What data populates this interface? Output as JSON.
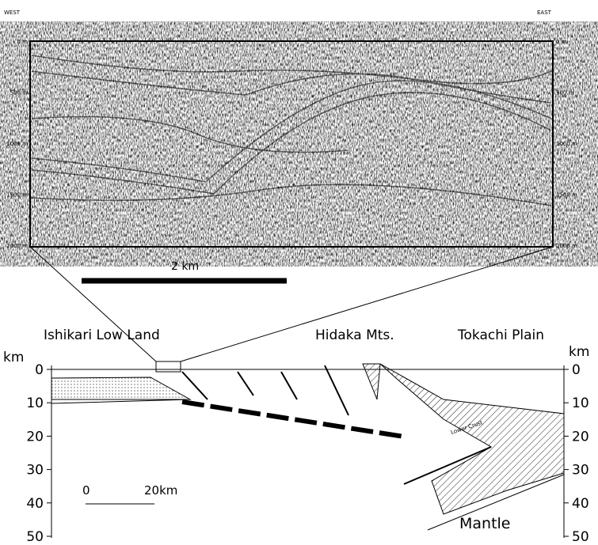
{
  "seismic": {
    "west": "WEST",
    "east": "EAST",
    "depth_labels": [
      "0 m",
      "500 m",
      "1000 m",
      "1500 m",
      "2000 m"
    ],
    "scale": "2 km"
  },
  "section": {
    "labels": [
      "Ishikari Low Land",
      "Hidaka Mts.",
      "Tokachi Plain"
    ],
    "axis_unit": "km",
    "ticks": [
      0,
      10,
      20,
      30,
      40,
      50
    ],
    "scale_zero": "0",
    "scale_end": "20km",
    "lower_crust": "Lower Crust",
    "mantle": "Mantle"
  }
}
